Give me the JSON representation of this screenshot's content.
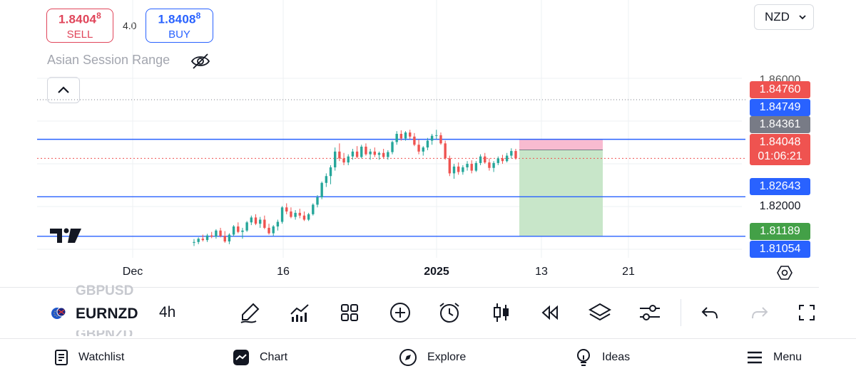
{
  "trade": {
    "sell_price": "1.8404",
    "sell_pip": "8",
    "sell_label": "SELL",
    "buy_price": "1.8408",
    "buy_pip": "8",
    "buy_label": "BUY",
    "spread": "4.0"
  },
  "currency": {
    "selected": "NZD"
  },
  "indicator": {
    "name": "Asian Session Range"
  },
  "chart_data": {
    "type": "candlestick",
    "symbol": "EURNZD",
    "interval": "4h",
    "y_range": [
      1.804,
      1.8725
    ],
    "candles": [
      [
        1.8095,
        1.8109,
        1.8083,
        1.8098
      ],
      [
        1.8098,
        1.8115,
        1.809,
        1.811
      ],
      [
        1.811,
        1.8125,
        1.81,
        1.8105
      ],
      [
        1.8105,
        1.8128,
        1.8098,
        1.8122
      ],
      [
        1.8122,
        1.8135,
        1.8112,
        1.8118
      ],
      [
        1.8118,
        1.8145,
        1.811,
        1.814
      ],
      [
        1.814,
        1.815,
        1.8115,
        1.812
      ],
      [
        1.812,
        1.8138,
        1.8095,
        1.81
      ],
      [
        1.81,
        1.813,
        1.809,
        1.8125
      ],
      [
        1.8125,
        1.816,
        1.8118,
        1.8155
      ],
      [
        1.8155,
        1.817,
        1.813,
        1.8135
      ],
      [
        1.8135,
        1.815,
        1.811,
        1.814
      ],
      [
        1.814,
        1.8175,
        1.8135,
        1.817
      ],
      [
        1.817,
        1.8195,
        1.816,
        1.8188
      ],
      [
        1.8188,
        1.82,
        1.816,
        1.8165
      ],
      [
        1.8165,
        1.819,
        1.815,
        1.818
      ],
      [
        1.818,
        1.8195,
        1.8145,
        1.815
      ],
      [
        1.815,
        1.8165,
        1.8125,
        1.813
      ],
      [
        1.813,
        1.816,
        1.812,
        1.8155
      ],
      [
        1.8155,
        1.818,
        1.814,
        1.8172
      ],
      [
        1.8172,
        1.823,
        1.8165,
        1.8225
      ],
      [
        1.8225,
        1.824,
        1.82,
        1.821
      ],
      [
        1.821,
        1.8225,
        1.8185,
        1.819
      ],
      [
        1.819,
        1.8215,
        1.818,
        1.8205
      ],
      [
        1.8205,
        1.822,
        1.8185,
        1.8195
      ],
      [
        1.8195,
        1.821,
        1.8175,
        1.818
      ],
      [
        1.818,
        1.8205,
        1.8175,
        1.82
      ],
      [
        1.82,
        1.824,
        1.8195,
        1.8235
      ],
      [
        1.8235,
        1.827,
        1.8225,
        1.8262
      ],
      [
        1.8262,
        1.832,
        1.8255,
        1.8315
      ],
      [
        1.8315,
        1.835,
        1.83,
        1.834
      ],
      [
        1.834,
        1.838,
        1.831,
        1.8372
      ],
      [
        1.8372,
        1.8445,
        1.836,
        1.843
      ],
      [
        1.843,
        1.846,
        1.8395,
        1.8405
      ],
      [
        1.8405,
        1.8425,
        1.838,
        1.839
      ],
      [
        1.839,
        1.842,
        1.838,
        1.8412
      ],
      [
        1.8412,
        1.844,
        1.84,
        1.843
      ],
      [
        1.843,
        1.845,
        1.8405,
        1.841
      ],
      [
        1.841,
        1.8455,
        1.8405,
        1.8448
      ],
      [
        1.8448,
        1.846,
        1.8415,
        1.842
      ],
      [
        1.842,
        1.844,
        1.84,
        1.843
      ],
      [
        1.843,
        1.8445,
        1.841,
        1.8418
      ],
      [
        1.8418,
        1.843,
        1.84,
        1.8425
      ],
      [
        1.8425,
        1.844,
        1.8405,
        1.841
      ],
      [
        1.841,
        1.8435,
        1.84,
        1.8428
      ],
      [
        1.8428,
        1.847,
        1.842,
        1.8465
      ],
      [
        1.8465,
        1.8505,
        1.8455,
        1.8495
      ],
      [
        1.8495,
        1.8508,
        1.847,
        1.8478
      ],
      [
        1.8478,
        1.8505,
        1.847,
        1.85
      ],
      [
        1.85,
        1.851,
        1.8475,
        1.8485
      ],
      [
        1.8485,
        1.8498,
        1.845,
        1.8455
      ],
      [
        1.8455,
        1.8475,
        1.842,
        1.843
      ],
      [
        1.843,
        1.845,
        1.8415,
        1.8445
      ],
      [
        1.8445,
        1.848,
        1.8435,
        1.847
      ],
      [
        1.847,
        1.8495,
        1.8455,
        1.8488
      ],
      [
        1.8488,
        1.851,
        1.8475,
        1.849
      ],
      [
        1.849,
        1.85,
        1.8455,
        1.846
      ],
      [
        1.846,
        1.847,
        1.84,
        1.8405
      ],
      [
        1.8405,
        1.8415,
        1.834,
        1.835
      ],
      [
        1.835,
        1.8385,
        1.833,
        1.8375
      ],
      [
        1.8375,
        1.839,
        1.8345,
        1.8355
      ],
      [
        1.8355,
        1.838,
        1.8345,
        1.8372
      ],
      [
        1.8372,
        1.8395,
        1.836,
        1.8385
      ],
      [
        1.8385,
        1.8398,
        1.835,
        1.836
      ],
      [
        1.836,
        1.8395,
        1.8355,
        1.8388
      ],
      [
        1.8388,
        1.842,
        1.838,
        1.8412
      ],
      [
        1.8412,
        1.8425,
        1.8385,
        1.839
      ],
      [
        1.839,
        1.8405,
        1.836,
        1.837
      ],
      [
        1.837,
        1.8395,
        1.8355,
        1.8388
      ],
      [
        1.8388,
        1.8412,
        1.838,
        1.8405
      ],
      [
        1.8405,
        1.8418,
        1.8385,
        1.8395
      ],
      [
        1.8395,
        1.8425,
        1.839,
        1.8415
      ],
      [
        1.8415,
        1.8442,
        1.8405,
        1.8432
      ],
      [
        1.8432,
        1.844,
        1.84,
        1.8405
      ]
    ],
    "horizontal_levels": [
      1.8475,
      1.8264,
      1.8119
    ],
    "position": {
      "entry": 1.8436,
      "stop": 1.8476,
      "target": 1.8119
    },
    "colors": {
      "up": "#26a69a",
      "down": "#ef5350",
      "level": "#2962ff",
      "stop_zone": "#f8bbd0",
      "target_zone": "#c8e6c9"
    },
    "price_axis": {
      "top_partial": "1.86000",
      "label_stop": "1.84760",
      "label_level": "1.84749",
      "label_entry": "1.84361",
      "label_last": "1.84048",
      "countdown": "01:06:21",
      "label_mid": "1.82643",
      "tick": "1.82000",
      "label_target": "1.81189",
      "label_low": "1.81054"
    },
    "time_axis": [
      "Dec",
      "16",
      "2025",
      "13",
      "21"
    ]
  },
  "toolbar": {
    "symbol_prev": "GBPUSD",
    "symbol": "EURNZD",
    "symbol_next": "GBPNZD",
    "interval": "4h"
  },
  "icons": [
    "eye-off-icon",
    "chevron-up-icon",
    "chevron-down-icon",
    "pencil-icon",
    "indicators-icon",
    "layouts-icon",
    "plus-circle-icon",
    "alarm-icon",
    "candles-icon",
    "replay-icon",
    "layers-icon",
    "settings-icon",
    "undo-icon",
    "redo-icon",
    "fullscreen-icon",
    "settings-hex-icon"
  ],
  "nav": {
    "watchlist": "Watchlist",
    "chart": "Chart",
    "explore": "Explore",
    "ideas": "Ideas",
    "menu": "Menu"
  }
}
